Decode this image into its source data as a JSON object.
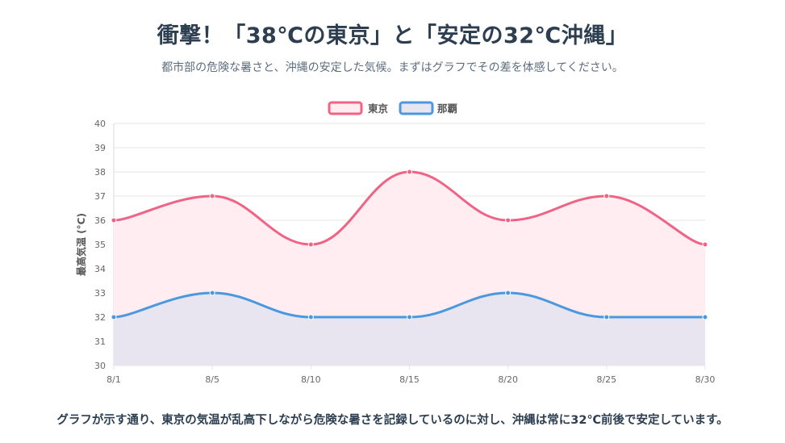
{
  "header": {
    "title": "衝撃！「38℃の東京」と「安定の32℃沖縄」",
    "subtitle": "都市部の危険な暑さと、沖縄の安定した気候。まずはグラフでその差を体感してください。"
  },
  "footer": {
    "text": "グラフが示す通り、東京の気温が乱高下しながら危険な暑さを記録しているのに対し、沖縄は常に32℃前後で安定しています。"
  },
  "colors": {
    "tokyo_line": "#f06384",
    "tokyo_fill": "#ffedf1",
    "naha_line": "#4a98e0",
    "naha_fill": "#e8e4f0",
    "grid": "#e6e6e6"
  },
  "chart_data": {
    "type": "line",
    "categories": [
      "8/1",
      "8/5",
      "8/10",
      "8/15",
      "8/20",
      "8/25",
      "8/30"
    ],
    "series": [
      {
        "name": "東京",
        "values": [
          36,
          37,
          35,
          38,
          36,
          37,
          35
        ]
      },
      {
        "name": "那覇",
        "values": [
          32,
          33,
          32,
          32,
          33,
          32,
          32
        ]
      }
    ],
    "ylabel": "最高気温 (°C)",
    "xlabel": "",
    "ylim": [
      30,
      40
    ],
    "yticks": [
      30,
      31,
      32,
      33,
      34,
      35,
      36,
      37,
      38,
      39,
      40
    ],
    "grid": true,
    "legend": "top-center",
    "fill": true
  }
}
